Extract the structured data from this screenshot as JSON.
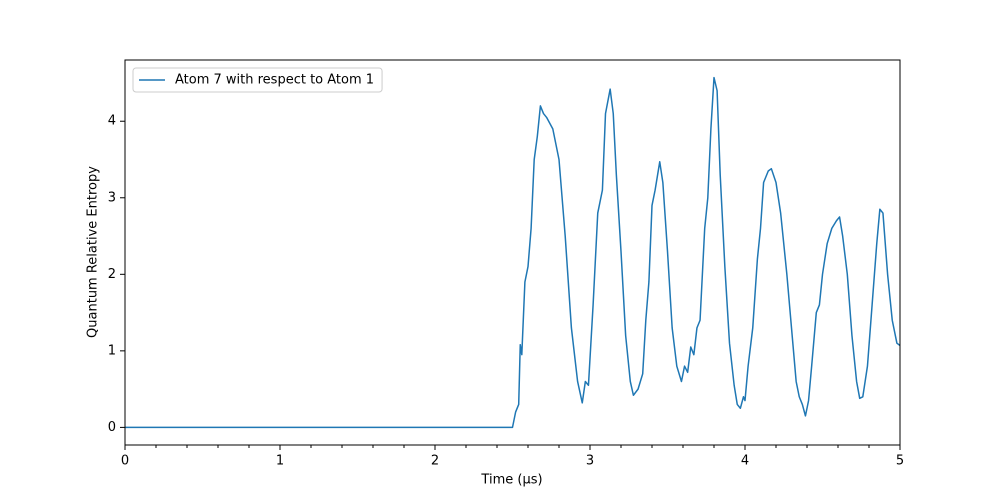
{
  "chart_data": {
    "type": "line",
    "xlabel": "Time (µs)",
    "ylabel": "Quantum Relative Entropy",
    "x": [
      0,
      2.5,
      2.52,
      2.54,
      2.55,
      2.56,
      2.58,
      2.6,
      2.62,
      2.64,
      2.66,
      2.68,
      2.7,
      2.72,
      2.76,
      2.8,
      2.84,
      2.88,
      2.92,
      2.95,
      2.97,
      2.99,
      3.02,
      3.05,
      3.08,
      3.1,
      3.13,
      3.15,
      3.17,
      3.2,
      3.23,
      3.26,
      3.28,
      3.31,
      3.34,
      3.36,
      3.38,
      3.4,
      3.42,
      3.45,
      3.47,
      3.5,
      3.53,
      3.56,
      3.59,
      3.61,
      3.63,
      3.65,
      3.67,
      3.69,
      3.71,
      3.74,
      3.76,
      3.78,
      3.8,
      3.82,
      3.84,
      3.87,
      3.9,
      3.93,
      3.95,
      3.97,
      3.99,
      4.0,
      4.02,
      4.05,
      4.08,
      4.1,
      4.12,
      4.15,
      4.17,
      4.2,
      4.23,
      4.27,
      4.3,
      4.33,
      4.35,
      4.37,
      4.39,
      4.41,
      4.43,
      4.46,
      4.48,
      4.5,
      4.53,
      4.56,
      4.59,
      4.61,
      4.63,
      4.66,
      4.69,
      4.72,
      4.74,
      4.76,
      4.79,
      4.82,
      4.85,
      4.87,
      4.89,
      4.92,
      4.95,
      4.98,
      5.0
    ],
    "series": [
      {
        "name": "Atom 7 with respect to Atom 1",
        "color": "#1f77b4",
        "values": [
          0,
          0,
          0.2,
          0.3,
          1.08,
          0.95,
          1.9,
          2.1,
          2.6,
          3.5,
          3.8,
          4.2,
          4.1,
          4.05,
          3.9,
          3.5,
          2.5,
          1.3,
          0.6,
          0.32,
          0.6,
          0.55,
          1.6,
          2.8,
          3.1,
          4.1,
          4.42,
          4.1,
          3.3,
          2.3,
          1.2,
          0.6,
          0.42,
          0.5,
          0.7,
          1.4,
          1.9,
          2.9,
          3.1,
          3.47,
          3.2,
          2.3,
          1.3,
          0.8,
          0.6,
          0.8,
          0.72,
          1.05,
          0.95,
          1.3,
          1.4,
          2.6,
          3.0,
          3.9,
          4.57,
          4.4,
          3.3,
          2.1,
          1.1,
          0.55,
          0.3,
          0.25,
          0.4,
          0.35,
          0.8,
          1.3,
          2.2,
          2.6,
          3.2,
          3.35,
          3.38,
          3.2,
          2.8,
          2.0,
          1.3,
          0.6,
          0.4,
          0.3,
          0.15,
          0.35,
          0.8,
          1.5,
          1.6,
          2.0,
          2.4,
          2.6,
          2.7,
          2.75,
          2.5,
          2.0,
          1.2,
          0.6,
          0.38,
          0.4,
          0.8,
          1.6,
          2.4,
          2.85,
          2.8,
          2.0,
          1.4,
          1.1,
          1.07
        ]
      }
    ],
    "xlim": [
      0,
      5
    ],
    "ylim": [
      -0.23,
      4.8
    ],
    "xticks": [
      0,
      1,
      2,
      3,
      4,
      5
    ],
    "yticks": [
      0,
      1,
      2,
      3,
      4
    ],
    "xminorticks": [
      0.2,
      0.4,
      0.6,
      0.8,
      1.2,
      1.4,
      1.6,
      1.8,
      2.2,
      2.4,
      2.6,
      2.8,
      3.2,
      3.4,
      3.6,
      3.8,
      4.2,
      4.4,
      4.6,
      4.8
    ],
    "grid": false,
    "legend": "upper left"
  }
}
